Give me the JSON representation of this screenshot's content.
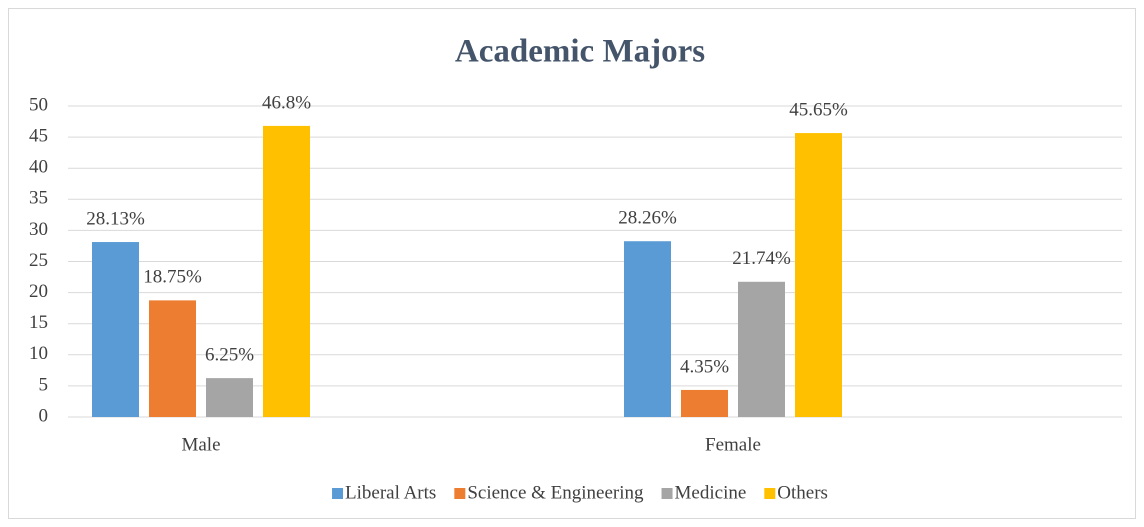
{
  "chart_data": {
    "type": "bar",
    "title": "Academic Majors",
    "categories": [
      "Male",
      "Female"
    ],
    "series": [
      {
        "name": "Liberal Arts",
        "color": "#5b9bd5",
        "values": [
          28.13,
          28.26
        ],
        "value_labels": [
          "28.13%",
          "28.26%"
        ]
      },
      {
        "name": "Science & Engineering",
        "color": "#ed7d31",
        "values": [
          18.75,
          4.35
        ],
        "value_labels": [
          "18.75%",
          "4.35%"
        ]
      },
      {
        "name": "Medicine",
        "color": "#a5a5a5",
        "values": [
          6.25,
          21.74
        ],
        "value_labels": [
          "6.25%",
          "21.74%"
        ]
      },
      {
        "name": "Others",
        "color": "#ffc000",
        "values": [
          46.8,
          45.65
        ],
        "value_labels": [
          "46.8%",
          "45.65%"
        ]
      }
    ],
    "ylim": [
      0,
      50
    ],
    "yticks": [
      0,
      5,
      10,
      15,
      20,
      25,
      30,
      35,
      40,
      45,
      50
    ],
    "grid": true,
    "legend": "bottom"
  }
}
